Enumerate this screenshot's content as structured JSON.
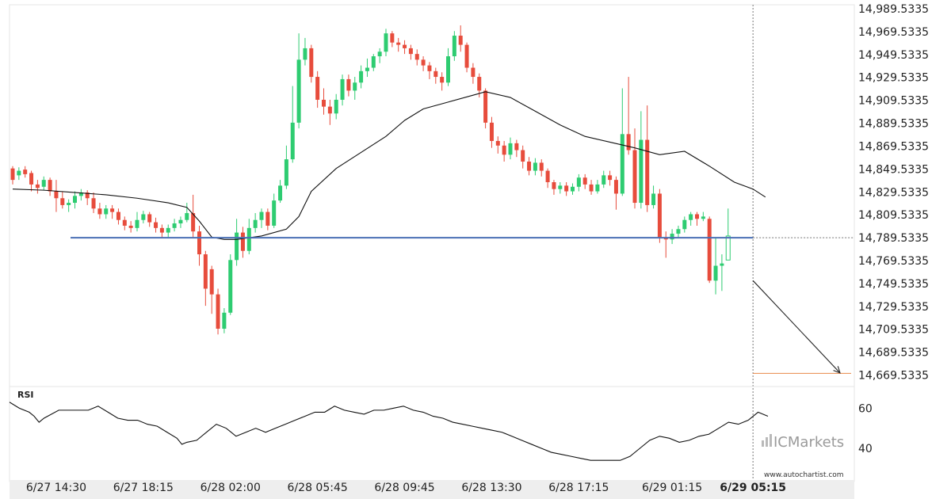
{
  "chart_data": {
    "type": "candlestick",
    "y_ticks": [
      "14,989.5335",
      "14,969.5335",
      "14,949.5335",
      "14,929.5335",
      "14,909.5335",
      "14,889.5335",
      "14,869.5335",
      "14,849.5335",
      "14,829.5335",
      "14,809.5335",
      "14,789.5335",
      "14,769.5335",
      "14,749.5335",
      "14,729.5335",
      "14,709.5335",
      "14,689.5335",
      "14,669.5335"
    ],
    "y_tick_values": [
      14989.5335,
      14969.5335,
      14949.5335,
      14929.5335,
      14909.5335,
      14889.5335,
      14869.5335,
      14849.5335,
      14829.5335,
      14809.5335,
      14789.5335,
      14769.5335,
      14749.5335,
      14729.5335,
      14709.5335,
      14689.5335,
      14669.5335
    ],
    "ylim": [
      14659.5,
      14993
    ],
    "x_ticks": [
      "6/27 14:30",
      "6/27 18:15",
      "6/28 02:00",
      "6/28 05:45",
      "6/28 09:45",
      "6/28 13:30",
      "6/28 17:15",
      "6/29 01:15",
      "6/29 05:15"
    ],
    "x_tick_bar_index": [
      7,
      21,
      35,
      49,
      63,
      77,
      91,
      106,
      119
    ],
    "support_level": 14789.5335,
    "target_level": 14671,
    "projection": {
      "from_bar": 119,
      "from_value": 14752,
      "to_value": 14671
    },
    "candles": [
      [
        14850,
        14840,
        14852,
        14836
      ],
      [
        14844,
        14848,
        14851,
        14840
      ],
      [
        14849,
        14845,
        14852,
        14842
      ],
      [
        14846,
        14836,
        14848,
        14830
      ],
      [
        14836,
        14833,
        14840,
        14828
      ],
      [
        14834,
        14840,
        14843,
        14831
      ],
      [
        14840,
        14830,
        14842,
        14826
      ],
      [
        14830,
        14824,
        14840,
        14812
      ],
      [
        14824,
        14818,
        14830,
        14815
      ],
      [
        14818,
        14820,
        14823,
        14812
      ],
      [
        14820,
        14826,
        14830,
        14815
      ],
      [
        14826,
        14829,
        14832,
        14822
      ],
      [
        14829,
        14824,
        14831,
        14818
      ],
      [
        14824,
        14815,
        14829,
        14811
      ],
      [
        14815,
        14810,
        14820,
        14806
      ],
      [
        14810,
        14815,
        14818,
        14806
      ],
      [
        14815,
        14812,
        14818,
        14806
      ],
      [
        14812,
        14805,
        14815,
        14801
      ],
      [
        14805,
        14800,
        14808,
        14796
      ],
      [
        14800,
        14798,
        14804,
        14794
      ],
      [
        14798,
        14805,
        14812,
        14795
      ],
      [
        14805,
        14810,
        14813,
        14802
      ],
      [
        14810,
        14803,
        14812,
        14799
      ],
      [
        14803,
        14798,
        14807,
        14794
      ],
      [
        14798,
        14794,
        14801,
        14789
      ],
      [
        14794,
        14798,
        14801,
        14790
      ],
      [
        14798,
        14802,
        14806,
        14795
      ],
      [
        14802,
        14805,
        14808,
        14798
      ],
      [
        14805,
        14811,
        14820,
        14803
      ],
      [
        14811,
        14795,
        14827,
        14790
      ],
      [
        14795,
        14775,
        14800,
        14765
      ],
      [
        14775,
        14745,
        14778,
        14730
      ],
      [
        14762,
        14740,
        14765,
        14723
      ],
      [
        14740,
        14710,
        14745,
        14705
      ],
      [
        14710,
        14724,
        14728,
        14706
      ],
      [
        14724,
        14770,
        14775,
        14722
      ],
      [
        14770,
        14794,
        14806,
        14765
      ],
      [
        14794,
        14778,
        14799,
        14772
      ],
      [
        14778,
        14798,
        14806,
        14775
      ],
      [
        14798,
        14805,
        14811,
        14794
      ],
      [
        14805,
        14812,
        14815,
        14798
      ],
      [
        14812,
        14800,
        14815,
        14796
      ],
      [
        14800,
        14822,
        14828,
        14798
      ],
      [
        14822,
        14835,
        14840,
        14820
      ],
      [
        14835,
        14858,
        14870,
        14832
      ],
      [
        14858,
        14890,
        14922,
        14855
      ],
      [
        14890,
        14945,
        14968,
        14885
      ],
      [
        14945,
        14955,
        14964,
        14940
      ],
      [
        14955,
        14930,
        14958,
        14925
      ],
      [
        14930,
        14910,
        14935,
        14903
      ],
      [
        14910,
        14904,
        14920,
        14897
      ],
      [
        14904,
        14898,
        14910,
        14888
      ],
      [
        14898,
        14910,
        14915,
        14893
      ],
      [
        14910,
        14928,
        14932,
        14905
      ],
      [
        14928,
        14918,
        14932,
        14913
      ],
      [
        14918,
        14925,
        14930,
        14910
      ],
      [
        14925,
        14935,
        14940,
        14920
      ],
      [
        14935,
        14938,
        14946,
        14930
      ],
      [
        14938,
        14948,
        14950,
        14935
      ],
      [
        14948,
        14952,
        14955,
        14942
      ],
      [
        14952,
        14968,
        14972,
        14948
      ],
      [
        14968,
        14960,
        14970,
        14956
      ],
      [
        14960,
        14958,
        14964,
        14952
      ],
      [
        14958,
        14955,
        14962,
        14950
      ],
      [
        14955,
        14950,
        14958,
        14945
      ],
      [
        14950,
        14945,
        14954,
        14940
      ],
      [
        14945,
        14940,
        14948,
        14935
      ],
      [
        14940,
        14935,
        14943,
        14928
      ],
      [
        14935,
        14930,
        14938,
        14924
      ],
      [
        14930,
        14925,
        14934,
        14918
      ],
      [
        14925,
        14948,
        14955,
        14922
      ],
      [
        14948,
        14966,
        14970,
        14944
      ],
      [
        14966,
        14958,
        14975,
        14952
      ],
      [
        14958,
        14938,
        14960,
        14934
      ],
      [
        14938,
        14930,
        14942,
        14924
      ],
      [
        14930,
        14918,
        14933,
        14912
      ],
      [
        14918,
        14890,
        14920,
        14885
      ],
      [
        14890,
        14874,
        14895,
        14868
      ],
      [
        14874,
        14870,
        14878,
        14863
      ],
      [
        14870,
        14862,
        14874,
        14856
      ],
      [
        14862,
        14872,
        14877,
        14858
      ],
      [
        14872,
        14866,
        14875,
        14860
      ],
      [
        14866,
        14856,
        14870,
        14850
      ],
      [
        14856,
        14848,
        14860,
        14844
      ],
      [
        14848,
        14855,
        14859,
        14844
      ],
      [
        14855,
        14848,
        14858,
        14843
      ],
      [
        14848,
        14838,
        14850,
        14833
      ],
      [
        14838,
        14832,
        14840,
        14827
      ],
      [
        14832,
        14835,
        14838,
        14828
      ],
      [
        14835,
        14830,
        14838,
        14826
      ],
      [
        14830,
        14834,
        14837,
        14827
      ],
      [
        14834,
        14842,
        14845,
        14830
      ],
      [
        14842,
        14836,
        14845,
        14832
      ],
      [
        14836,
        14830,
        14840,
        14827
      ],
      [
        14830,
        14836,
        14840,
        14828
      ],
      [
        14836,
        14844,
        14848,
        14833
      ],
      [
        14844,
        14840,
        14848,
        14835
      ],
      [
        14840,
        14828,
        14843,
        14814
      ],
      [
        14828,
        14880,
        14920,
        14826
      ],
      [
        14880,
        14866,
        14930,
        14862
      ],
      [
        14866,
        14820,
        14885,
        14815
      ],
      [
        14820,
        14875,
        14900,
        14815
      ],
      [
        14875,
        14818,
        14905,
        14812
      ],
      [
        14818,
        14828,
        14835,
        14815
      ],
      [
        14828,
        14790,
        14832,
        14785
      ],
      [
        14790,
        14788,
        14795,
        14772
      ],
      [
        14788,
        14793,
        14797,
        14784
      ],
      [
        14793,
        14797,
        14800,
        14789
      ],
      [
        14797,
        14805,
        14808,
        14794
      ],
      [
        14805,
        14810,
        14812,
        14800
      ],
      [
        14810,
        14806,
        14812,
        14800
      ],
      [
        14806,
        14808,
        14812,
        14804
      ],
      [
        14806,
        14752,
        14808,
        14750
      ],
      [
        14752,
        14765,
        14790,
        14740
      ],
      [
        14765,
        14767,
        14775,
        14743
      ],
      [
        14770,
        14791,
        14815,
        14770
      ]
    ],
    "ma": [
      [
        0,
        14832
      ],
      [
        5,
        14831
      ],
      [
        10,
        14829
      ],
      [
        15,
        14827
      ],
      [
        20,
        14824
      ],
      [
        25,
        14820
      ],
      [
        28,
        14816
      ],
      [
        30,
        14804
      ],
      [
        32,
        14790
      ],
      [
        34,
        14788
      ],
      [
        36,
        14788
      ],
      [
        40,
        14791
      ],
      [
        44,
        14797
      ],
      [
        46,
        14808
      ],
      [
        48,
        14830
      ],
      [
        52,
        14850
      ],
      [
        56,
        14864
      ],
      [
        60,
        14878
      ],
      [
        63,
        14892
      ],
      [
        66,
        14902
      ],
      [
        70,
        14908
      ],
      [
        74,
        14914
      ],
      [
        76,
        14917
      ],
      [
        80,
        14912
      ],
      [
        84,
        14900
      ],
      [
        88,
        14888
      ],
      [
        92,
        14878
      ],
      [
        96,
        14873
      ],
      [
        100,
        14868
      ],
      [
        104,
        14862
      ],
      [
        108,
        14865
      ],
      [
        112,
        14852
      ],
      [
        116,
        14838
      ],
      [
        119,
        14832
      ],
      [
        121,
        14825
      ]
    ],
    "rsi": {
      "label": "RSI",
      "y_ticks": [
        "60",
        "40"
      ],
      "y_tick_values": [
        60,
        40
      ],
      "ylim": [
        25,
        70
      ],
      "values": [
        [
          0,
          63
        ],
        [
          2,
          60
        ],
        [
          4,
          58
        ],
        [
          5,
          56
        ],
        [
          6,
          53
        ],
        [
          7,
          55
        ],
        [
          10,
          59
        ],
        [
          16,
          59
        ],
        [
          18,
          61
        ],
        [
          20,
          58
        ],
        [
          22,
          55
        ],
        [
          24,
          54
        ],
        [
          26,
          54
        ],
        [
          28,
          52
        ],
        [
          30,
          51
        ],
        [
          32,
          48
        ],
        [
          34,
          45
        ],
        [
          35,
          42
        ],
        [
          36,
          43
        ],
        [
          38,
          44
        ],
        [
          40,
          48
        ],
        [
          42,
          52
        ],
        [
          44,
          50
        ],
        [
          45,
          48
        ],
        [
          46,
          46
        ],
        [
          48,
          48
        ],
        [
          50,
          50
        ],
        [
          52,
          48
        ],
        [
          54,
          50
        ],
        [
          56,
          52
        ],
        [
          58,
          54
        ],
        [
          60,
          56
        ],
        [
          62,
          58
        ],
        [
          64,
          58
        ],
        [
          66,
          61
        ],
        [
          68,
          59
        ],
        [
          70,
          58
        ],
        [
          72,
          57
        ],
        [
          74,
          59
        ],
        [
          76,
          59
        ],
        [
          78,
          60
        ],
        [
          80,
          61
        ],
        [
          82,
          59
        ],
        [
          84,
          58
        ],
        [
          86,
          56
        ],
        [
          88,
          55
        ],
        [
          90,
          53
        ],
        [
          92,
          52
        ],
        [
          94,
          51
        ],
        [
          96,
          50
        ],
        [
          98,
          49
        ],
        [
          100,
          48
        ],
        [
          102,
          46
        ],
        [
          104,
          44
        ],
        [
          106,
          42
        ],
        [
          108,
          40
        ],
        [
          110,
          38
        ],
        [
          112,
          37
        ],
        [
          114,
          36
        ],
        [
          116,
          35
        ],
        [
          118,
          34
        ],
        [
          120,
          34
        ],
        [
          124,
          34
        ],
        [
          126,
          36
        ],
        [
          128,
          40
        ],
        [
          130,
          44
        ],
        [
          132,
          46
        ],
        [
          134,
          45
        ],
        [
          136,
          43
        ],
        [
          138,
          44
        ],
        [
          140,
          46
        ],
        [
          142,
          47
        ],
        [
          144,
          50
        ],
        [
          146,
          53
        ],
        [
          148,
          52
        ],
        [
          150,
          54
        ],
        [
          152,
          58
        ],
        [
          154,
          56
        ]
      ]
    }
  },
  "branding": {
    "logo_text": "ICMarkets",
    "credit": "www.autochartist.com"
  },
  "colors": {
    "bull": "#2ecc71",
    "bear": "#e74c3c",
    "support": "#4a6fb5",
    "target": "#e8894a",
    "ma": "#111111"
  }
}
